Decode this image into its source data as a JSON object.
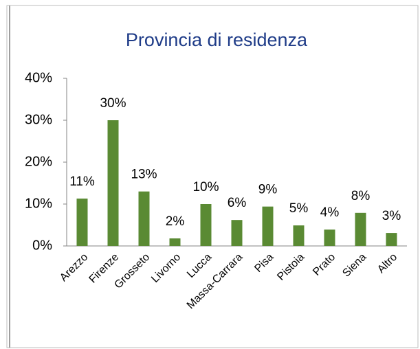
{
  "chart_data": {
    "type": "bar",
    "title": "Provincia di residenza",
    "categories": [
      "Arezzo",
      "Firenze",
      "Grosseto",
      "Livorno",
      "Lucca",
      "Massa-Carrara",
      "Pisa",
      "Pistoia",
      "Prato",
      "Siena",
      "Altro"
    ],
    "values": [
      11.3,
      30,
      13,
      1.8,
      10,
      6.2,
      9.4,
      4.9,
      3.9,
      7.9,
      3.1
    ],
    "value_labels": [
      "11%",
      "30%",
      "13%",
      "2%",
      "10%",
      "6%",
      "9%",
      "5%",
      "4%",
      "8%",
      "3%"
    ],
    "color": "#5a8a33",
    "ylim": [
      0,
      40
    ],
    "yticks": [
      {
        "value": 0,
        "label": "0%"
      },
      {
        "value": 10,
        "label": "10%"
      },
      {
        "value": 20,
        "label": "20%"
      },
      {
        "value": 30,
        "label": "30%"
      },
      {
        "value": 40,
        "label": "40%"
      }
    ],
    "grid": false
  }
}
